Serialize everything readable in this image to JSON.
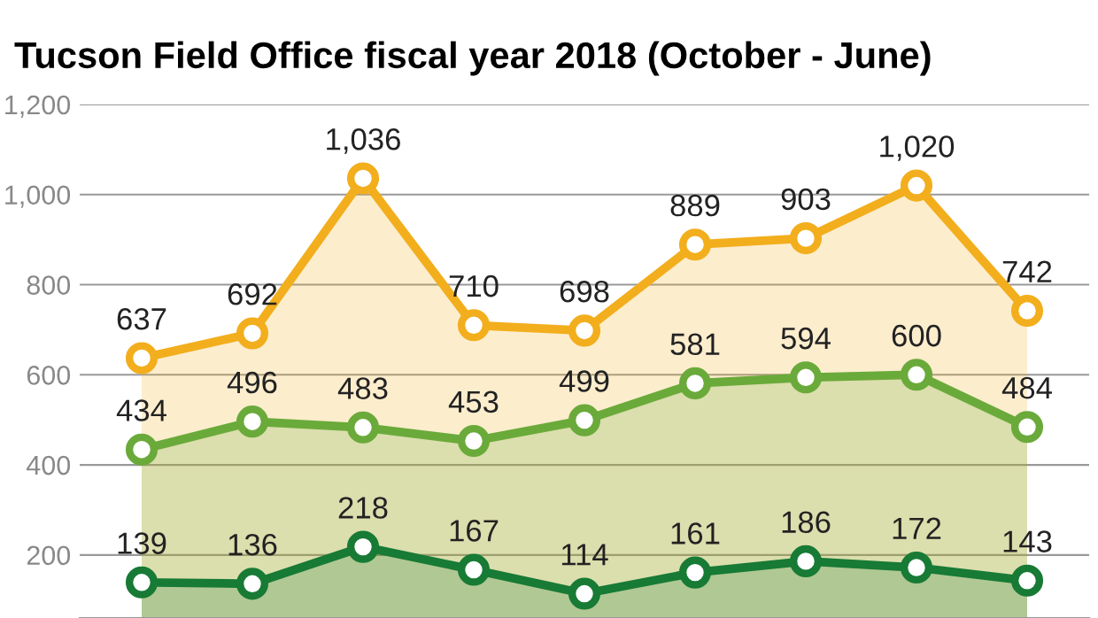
{
  "chart_data": {
    "type": "area",
    "title": "Tucson Field Office fiscal year 2018 (October - June)",
    "categories": [
      null,
      null,
      null,
      null,
      null,
      null,
      null,
      null,
      null
    ],
    "series": [
      {
        "color": "#f2ae1c",
        "values": [
          637,
          692,
          1036,
          710,
          698,
          889,
          903,
          1020,
          742
        ],
        "value_labels": [
          "637",
          "692",
          "1,036",
          "710",
          "698",
          "889",
          "903",
          "1,020",
          "742"
        ]
      },
      {
        "color": "#6aaa3a",
        "values": [
          434,
          496,
          483,
          453,
          499,
          581,
          594,
          600,
          484
        ],
        "value_labels": [
          "434",
          "496",
          "483",
          "453",
          "499",
          "581",
          "594",
          "600",
          "484"
        ]
      },
      {
        "color": "#177a35",
        "values": [
          139,
          136,
          218,
          167,
          114,
          161,
          186,
          172,
          143
        ],
        "value_labels": [
          "139",
          "136",
          "218",
          "167",
          "114",
          "161",
          "186",
          "172",
          "143"
        ]
      }
    ],
    "ylim": [
      60,
      1200
    ],
    "yticks": [
      {
        "value": 200,
        "label": "200"
      },
      {
        "value": 400,
        "label": "400"
      },
      {
        "value": 600,
        "label": "600"
      },
      {
        "value": 800,
        "label": "800"
      },
      {
        "value": 1000,
        "label": "1,000"
      },
      {
        "value": 1200,
        "label": "1,200"
      }
    ],
    "grid": "y",
    "tick_labels": "y",
    "marker": "circle"
  }
}
